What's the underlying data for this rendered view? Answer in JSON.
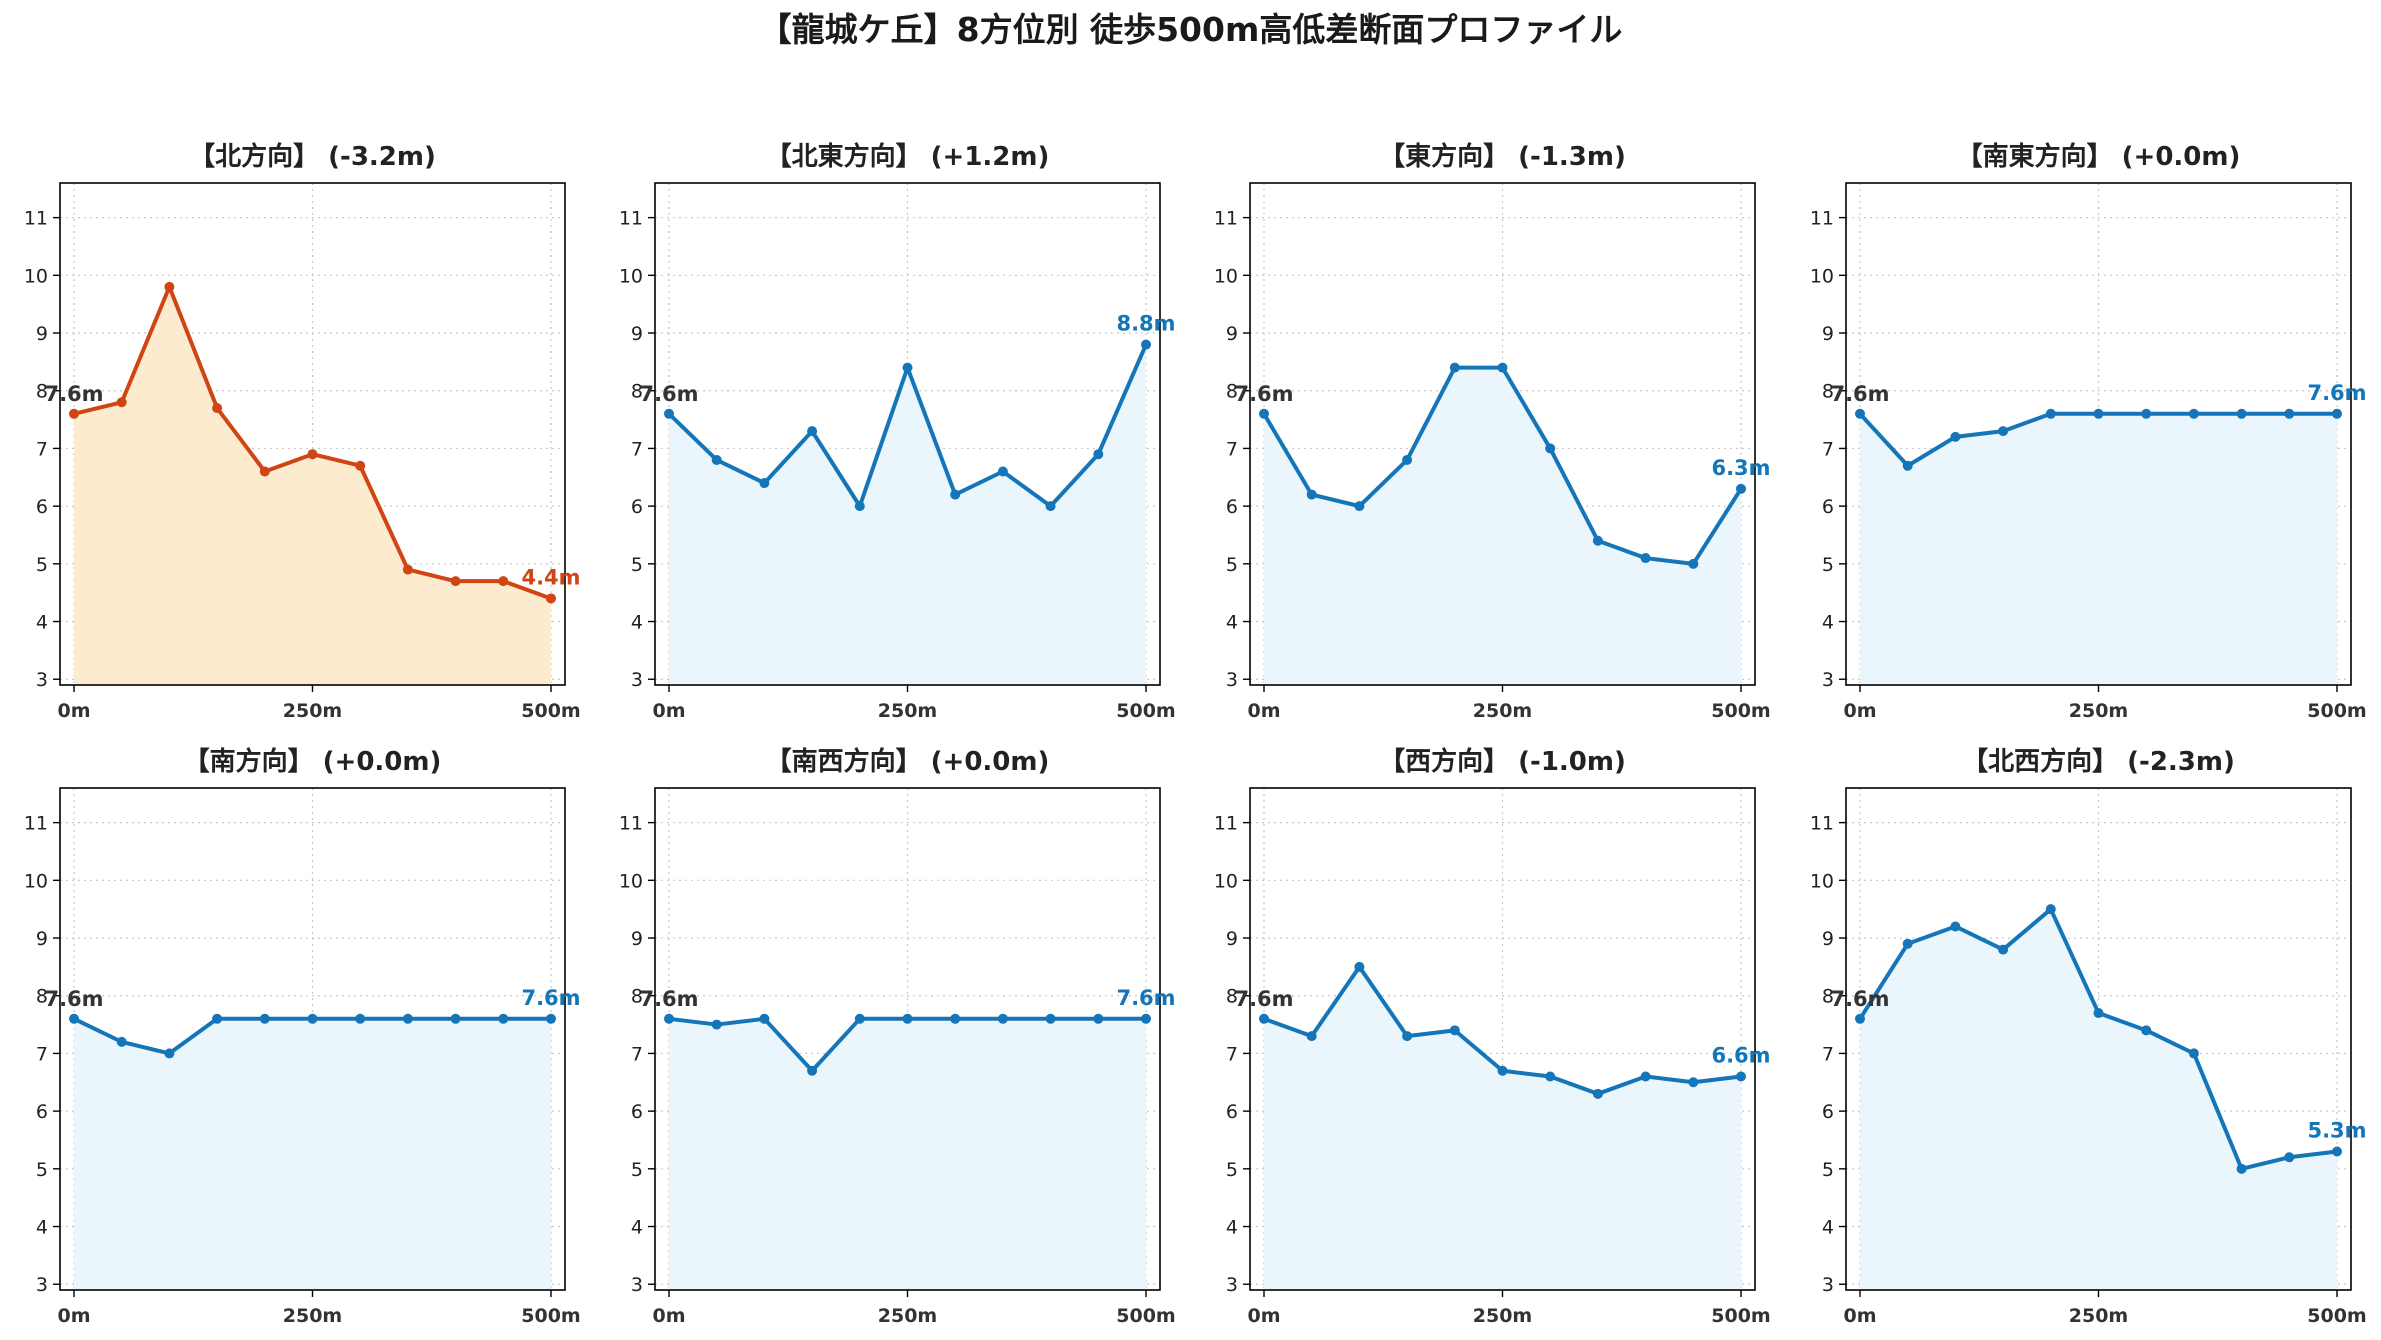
{
  "title": "【龍城ケ丘】8方位別 徒歩500m高低差断面プロファイル",
  "colors": {
    "highlight_line": "#d14414",
    "highlight_fill": "#fdebd0",
    "normal_line": "#1475b8",
    "normal_fill": "#eaf6fc",
    "start_label": "#333333",
    "grid": "#c8c8c8"
  },
  "chart_data": [
    {
      "type": "area",
      "title": "【北方向】 (-3.2m)",
      "highlight": true,
      "x": [
        0,
        50,
        100,
        150,
        200,
        250,
        300,
        350,
        400,
        450,
        500
      ],
      "values": [
        7.6,
        7.8,
        9.8,
        7.7,
        6.6,
        6.9,
        6.7,
        4.9,
        4.7,
        4.7,
        4.4
      ],
      "start_label": "7.6m",
      "end_label": "4.4m",
      "xticks": [
        "0m",
        "250m",
        "500m"
      ],
      "yticks": [
        3,
        4,
        5,
        6,
        7,
        8,
        9,
        10,
        11
      ],
      "ylim": [
        2.9,
        11.6
      ],
      "grid": true
    },
    {
      "type": "area",
      "title": "【北東方向】 (+1.2m)",
      "highlight": false,
      "x": [
        0,
        50,
        100,
        150,
        200,
        250,
        300,
        350,
        400,
        450,
        500
      ],
      "values": [
        7.6,
        6.8,
        6.4,
        7.3,
        6.0,
        8.4,
        6.2,
        6.6,
        6.0,
        6.9,
        8.8
      ],
      "start_label": "7.6m",
      "end_label": "8.8m",
      "xticks": [
        "0m",
        "250m",
        "500m"
      ],
      "yticks": [
        3,
        4,
        5,
        6,
        7,
        8,
        9,
        10,
        11
      ],
      "ylim": [
        2.9,
        11.6
      ],
      "grid": true
    },
    {
      "type": "area",
      "title": "【東方向】 (-1.3m)",
      "highlight": false,
      "x": [
        0,
        50,
        100,
        150,
        200,
        250,
        300,
        350,
        400,
        450,
        500
      ],
      "values": [
        7.6,
        6.2,
        6.0,
        6.8,
        8.4,
        8.4,
        7.0,
        5.4,
        5.1,
        5.0,
        6.3
      ],
      "start_label": "7.6m",
      "end_label": "6.3m",
      "xticks": [
        "0m",
        "250m",
        "500m"
      ],
      "yticks": [
        3,
        4,
        5,
        6,
        7,
        8,
        9,
        10,
        11
      ],
      "ylim": [
        2.9,
        11.6
      ],
      "grid": true
    },
    {
      "type": "area",
      "title": "【南東方向】 (+0.0m)",
      "highlight": false,
      "x": [
        0,
        50,
        100,
        150,
        200,
        250,
        300,
        350,
        400,
        450,
        500
      ],
      "values": [
        7.6,
        6.7,
        7.2,
        7.3,
        7.6,
        7.6,
        7.6,
        7.6,
        7.6,
        7.6,
        7.6
      ],
      "start_label": "7.6m",
      "end_label": "7.6m",
      "xticks": [
        "0m",
        "250m",
        "500m"
      ],
      "yticks": [
        3,
        4,
        5,
        6,
        7,
        8,
        9,
        10,
        11
      ],
      "ylim": [
        2.9,
        11.6
      ],
      "grid": true
    },
    {
      "type": "area",
      "title": "【南方向】 (+0.0m)",
      "highlight": false,
      "x": [
        0,
        50,
        100,
        150,
        200,
        250,
        300,
        350,
        400,
        450,
        500
      ],
      "values": [
        7.6,
        7.2,
        7.0,
        7.6,
        7.6,
        7.6,
        7.6,
        7.6,
        7.6,
        7.6,
        7.6
      ],
      "start_label": "7.6m",
      "end_label": "7.6m",
      "xticks": [
        "0m",
        "250m",
        "500m"
      ],
      "yticks": [
        3,
        4,
        5,
        6,
        7,
        8,
        9,
        10,
        11
      ],
      "ylim": [
        2.9,
        11.6
      ],
      "grid": true
    },
    {
      "type": "area",
      "title": "【南西方向】 (+0.0m)",
      "highlight": false,
      "x": [
        0,
        50,
        100,
        150,
        200,
        250,
        300,
        350,
        400,
        450,
        500
      ],
      "values": [
        7.6,
        7.5,
        7.6,
        6.7,
        7.6,
        7.6,
        7.6,
        7.6,
        7.6,
        7.6,
        7.6
      ],
      "start_label": "7.6m",
      "end_label": "7.6m",
      "xticks": [
        "0m",
        "250m",
        "500m"
      ],
      "yticks": [
        3,
        4,
        5,
        6,
        7,
        8,
        9,
        10,
        11
      ],
      "ylim": [
        2.9,
        11.6
      ],
      "grid": true
    },
    {
      "type": "area",
      "title": "【西方向】 (-1.0m)",
      "highlight": false,
      "x": [
        0,
        50,
        100,
        150,
        200,
        250,
        300,
        350,
        400,
        450,
        500
      ],
      "values": [
        7.6,
        7.3,
        8.5,
        7.3,
        7.4,
        6.7,
        6.6,
        6.3,
        6.6,
        6.5,
        6.6
      ],
      "start_label": "7.6m",
      "end_label": "6.6m",
      "xticks": [
        "0m",
        "250m",
        "500m"
      ],
      "yticks": [
        3,
        4,
        5,
        6,
        7,
        8,
        9,
        10,
        11
      ],
      "ylim": [
        2.9,
        11.6
      ],
      "grid": true
    },
    {
      "type": "area",
      "title": "【北西方向】 (-2.3m)",
      "highlight": false,
      "x": [
        0,
        50,
        100,
        150,
        200,
        250,
        300,
        350,
        400,
        450,
        500
      ],
      "values": [
        7.6,
        8.9,
        9.2,
        8.8,
        9.5,
        7.7,
        7.4,
        7.0,
        5.0,
        5.2,
        5.3
      ],
      "start_label": "7.6m",
      "end_label": "5.3m",
      "xticks": [
        "0m",
        "250m",
        "500m"
      ],
      "yticks": [
        3,
        4,
        5,
        6,
        7,
        8,
        9,
        10,
        11
      ],
      "ylim": [
        2.9,
        11.6
      ],
      "grid": true
    }
  ]
}
